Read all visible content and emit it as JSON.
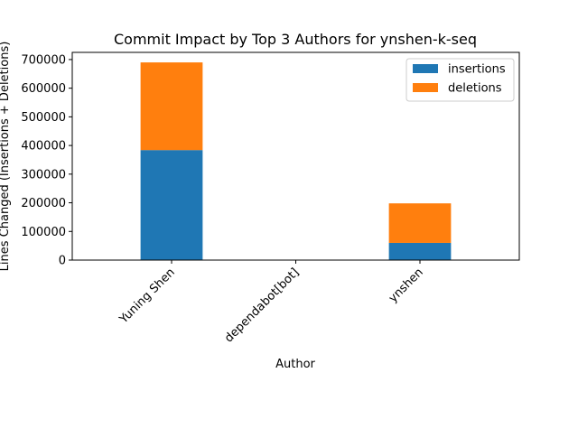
{
  "chart_data": {
    "type": "bar",
    "stacked": true,
    "title": "Commit Impact by Top 3 Authors for ynshen-k-seq",
    "xlabel": "Author",
    "ylabel": "Lines Changed (Insertions + Deletions)",
    "categories": [
      "Yuning Shen",
      "dependabot[bot]",
      "ynshen"
    ],
    "series": [
      {
        "name": "insertions",
        "color": "#1f77b4",
        "values": [
          384000,
          0,
          60000
        ]
      },
      {
        "name": "deletions",
        "color": "#ff7f0e",
        "values": [
          306000,
          0,
          138000
        ]
      }
    ],
    "ylim": [
      0,
      725000
    ],
    "yticks": [
      0,
      100000,
      200000,
      300000,
      400000,
      500000,
      600000,
      700000
    ],
    "ytick_labels": [
      "0",
      "100000",
      "200000",
      "300000",
      "400000",
      "500000",
      "600000",
      "700000"
    ],
    "grid": false,
    "legend_position": "top-right"
  }
}
